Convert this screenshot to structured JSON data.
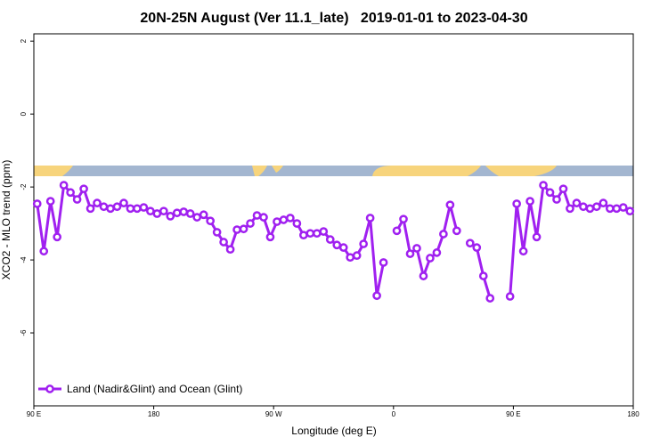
{
  "chart_data": {
    "type": "line",
    "title": "20N-25N August (Ver 11.1_late)   2019-01-01 to 2023-04-30",
    "x_label": "Longitude (deg E)",
    "y_label": "XCO2 - MLO trend (ppm)",
    "xlim": [
      90,
      540
    ],
    "xticks": [
      {
        "value": 90,
        "label": "90 E"
      },
      {
        "value": 180,
        "label": "180"
      },
      {
        "value": 270,
        "label": "90 W"
      },
      {
        "value": 360,
        "label": "0"
      },
      {
        "value": 450,
        "label": "90 E"
      },
      {
        "value": 540,
        "label": "180"
      }
    ],
    "ylim": [
      -8,
      2.2
    ],
    "yticks": [
      -6,
      -4,
      -2,
      0,
      2
    ],
    "legend": "bottom-left",
    "x": [
      92.5,
      97.5,
      102.5,
      107.5,
      112.5,
      117.5,
      122.5,
      127.5,
      132.5,
      137.5,
      142.5,
      147.5,
      152.5,
      157.5,
      162.5,
      167.5,
      172.5,
      177.5,
      182.5,
      187.5,
      192.5,
      197.5,
      202.5,
      207.5,
      212.5,
      217.5,
      222.5,
      227.5,
      232.5,
      237.5,
      242.5,
      247.5,
      252.5,
      257.5,
      262.5,
      267.5,
      272.5,
      277.5,
      282.5,
      287.5,
      292.5,
      297.5,
      302.5,
      307.5,
      312.5,
      317.5,
      322.5,
      327.5,
      332.5,
      337.5,
      342.5,
      347.5,
      352.5,
      357.5,
      362.5,
      367.5,
      372.5,
      377.5,
      382.5,
      387.5,
      392.5,
      397.5,
      402.5,
      407.5,
      412.5,
      417.5,
      422.5,
      427.5,
      432.5,
      437.5,
      442.5,
      447.5,
      452.5,
      457.5,
      462.5,
      467.5,
      472.5,
      477.5,
      482.5,
      487.5,
      492.5,
      497.5,
      502.5,
      507.5,
      512.5,
      517.5,
      522.5,
      527.5,
      532.5,
      537.5
    ],
    "series": [
      {
        "name": "Land (Nadir&Glint) and Ocean (Glint)",
        "color": "#a020f0",
        "values": [
          -2.46,
          -3.76,
          -2.39,
          -3.37,
          -1.95,
          -2.15,
          -2.34,
          -2.05,
          -2.59,
          -2.44,
          -2.54,
          -2.59,
          -2.54,
          -2.44,
          -2.59,
          -2.59,
          -2.56,
          -2.66,
          -2.73,
          -2.66,
          -2.8,
          -2.71,
          -2.68,
          -2.73,
          -2.83,
          -2.76,
          -2.93,
          -3.24,
          -3.51,
          -3.71,
          -3.17,
          -3.15,
          -3.0,
          -2.78,
          -2.83,
          -3.37,
          -2.95,
          -2.9,
          -2.85,
          -3.0,
          -3.32,
          -3.27,
          -3.27,
          -3.22,
          -3.44,
          -3.59,
          -3.66,
          -3.93,
          -3.88,
          -3.56,
          -2.85,
          -4.98,
          -4.07,
          null,
          -3.2,
          -2.88,
          -3.83,
          -3.68,
          -4.44,
          -3.95,
          -3.8,
          -3.29,
          -2.49,
          -3.2,
          null,
          -3.54,
          -3.66,
          -4.44,
          -5.05,
          null,
          null,
          -5.0,
          -2.46,
          -3.76,
          -2.39,
          -3.37,
          -1.95,
          -2.15,
          -2.34,
          -2.05,
          -2.59,
          -2.44,
          -2.54,
          -2.59,
          -2.54,
          -2.44,
          -2.59,
          -2.59,
          -2.56,
          -2.66
        ]
      }
    ]
  }
}
